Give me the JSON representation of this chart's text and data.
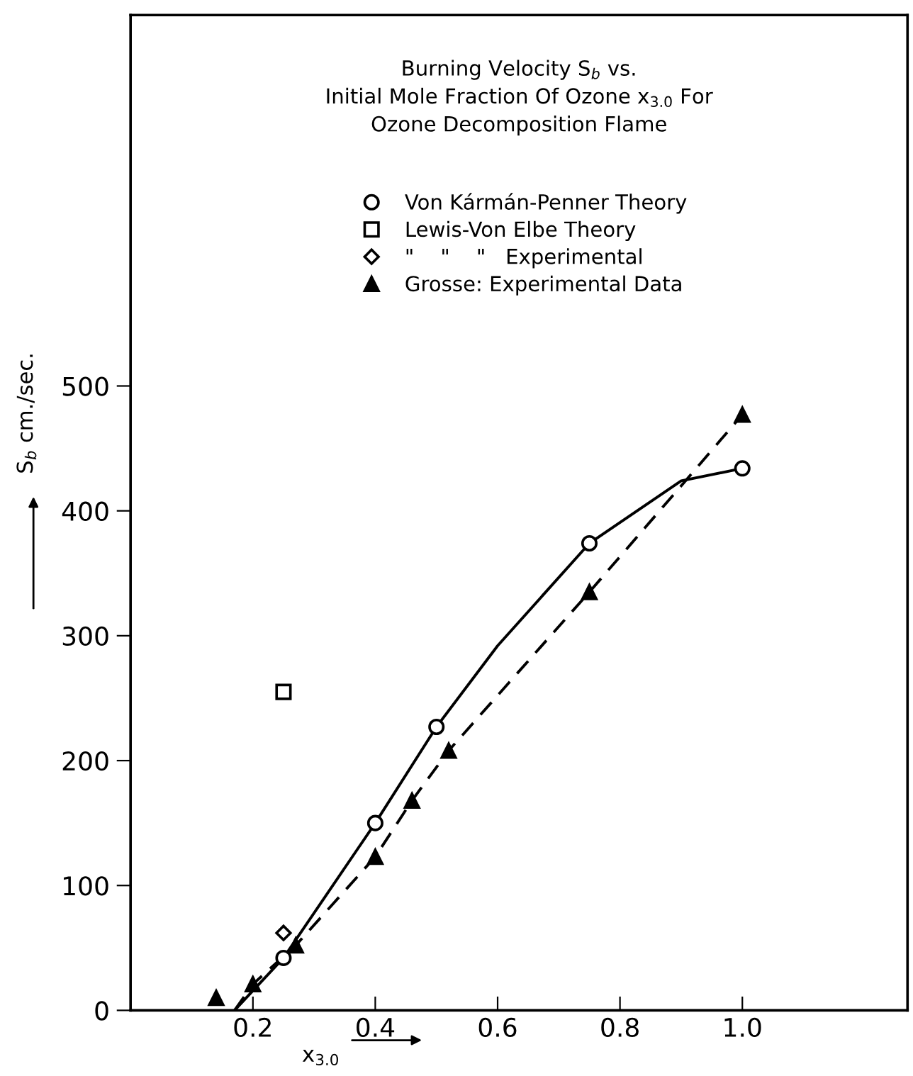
{
  "chart_data": {
    "type": "scatter",
    "title": "Burning Velocity S$_{b}$ vs.\nInitial Mole Fraction Of Ozone x$_{3.0}$ For\nOzone Decomposition Flame",
    "xlabel": "x$_{3.0}$",
    "ylabel": "S$_{b}$ cm./sec.",
    "series": [
      {
        "name": "Von Kármán-Penner Theory",
        "marker": "circle",
        "color": "#000000",
        "x": [
          0.25,
          0.4,
          0.5,
          0.75,
          1.0
        ],
        "values": [
          42,
          150,
          227,
          374,
          434
        ]
      },
      {
        "name": "Lewis-Von Elbe Theory",
        "marker": "square",
        "color": "#000000",
        "x": [
          0.25
        ],
        "values": [
          255
        ]
      },
      {
        "name": "\"    \"    \"   Experimental",
        "marker": "diamond",
        "color": "#000000",
        "x": [
          0.25
        ],
        "values": [
          62
        ]
      },
      {
        "name": "Grosse: Experimental Data",
        "marker": "triangle",
        "color": "#000000",
        "x": [
          0.14,
          0.2,
          0.27,
          0.4,
          0.46,
          0.52,
          0.75,
          1.0
        ],
        "values": [
          10,
          21,
          52,
          123,
          168,
          208,
          335,
          477
        ]
      },
      {
        "type": "line",
        "line_style": "solid",
        "color": "#000000",
        "x": [
          0.17,
          0.25,
          0.4,
          0.5,
          0.6,
          0.75,
          0.9,
          1.0
        ],
        "values": [
          0,
          42,
          150,
          227,
          292,
          374,
          424,
          434
        ]
      },
      {
        "type": "line",
        "line_style": "dashed",
        "color": "#000000",
        "x": [
          0.17,
          0.2,
          0.27,
          0.4,
          0.46,
          0.52,
          0.75,
          0.9,
          1.0
        ],
        "values": [
          0,
          21,
          52,
          123,
          168,
          208,
          335,
          420,
          477
        ]
      }
    ],
    "xlim": [
      0,
      1.27
    ],
    "ylim": [
      0,
      797
    ],
    "xticks": [
      0.2,
      0.4,
      0.6,
      0.8,
      {
        "value": 1.0,
        "label": "1.0"
      }
    ],
    "yticks": [
      0,
      100,
      200,
      300,
      400,
      500
    ],
    "grid": false,
    "legend": "top"
  }
}
